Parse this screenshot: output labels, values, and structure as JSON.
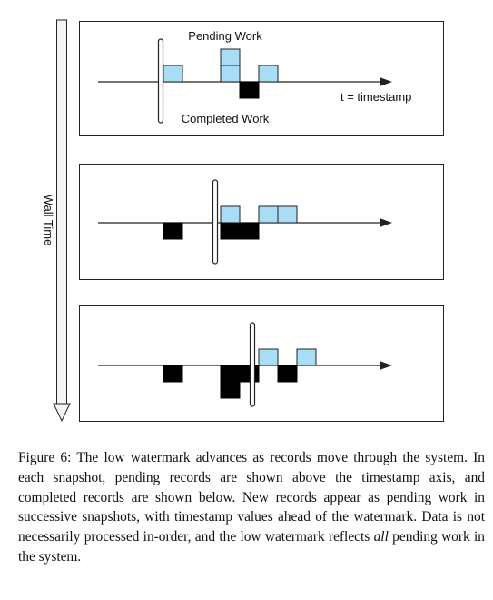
{
  "diagram": {
    "labels": {
      "pending_work": "Pending Work",
      "completed_work": "Completed Work",
      "axis_label": "t = timestamp",
      "wall_time": "Wall Time"
    },
    "colors": {
      "pending": "#a9dcf5",
      "completed": "#000000",
      "stroke": "#222222",
      "wall_arrow_fill": "#f4f4f4"
    },
    "snapshots": [
      {
        "pending": [
          {
            "t": 0,
            "level": 0
          },
          {
            "t": 3,
            "level": 0
          },
          {
            "t": 3,
            "level": 1
          },
          {
            "t": 5,
            "level": 0
          }
        ],
        "completed": [
          {
            "t": 4,
            "level": 0
          }
        ]
      },
      {
        "pending": [
          {
            "t": 3,
            "level": 0
          },
          {
            "t": 5,
            "level": 0
          },
          {
            "t": 6,
            "level": 0
          }
        ],
        "completed": [
          {
            "t": 0,
            "level": 0
          },
          {
            "t": 3,
            "level": 0
          },
          {
            "t": 4,
            "level": 0
          }
        ]
      },
      {
        "pending": [
          {
            "t": 5,
            "level": 0
          },
          {
            "t": 7,
            "level": 0
          }
        ],
        "completed": [
          {
            "t": 0,
            "level": 0
          },
          {
            "t": 3,
            "level": 0
          },
          {
            "t": 3,
            "level": 1
          },
          {
            "t": 4,
            "level": 0
          },
          {
            "t": 6,
            "level": 0
          }
        ]
      }
    ]
  },
  "caption": {
    "label": "Figure 6:",
    "text_before_em": "The low watermark advances as records move through the system. In each snapshot, pending records are shown above the timestamp axis, and completed records are shown below. New records appear as pending work in successive snapshots, with timestamp values ahead of the watermark. Data is not necessarily processed in-order, and the low watermark reflects",
    "emphasis": "all",
    "text_after_em": "pending work in the system."
  }
}
